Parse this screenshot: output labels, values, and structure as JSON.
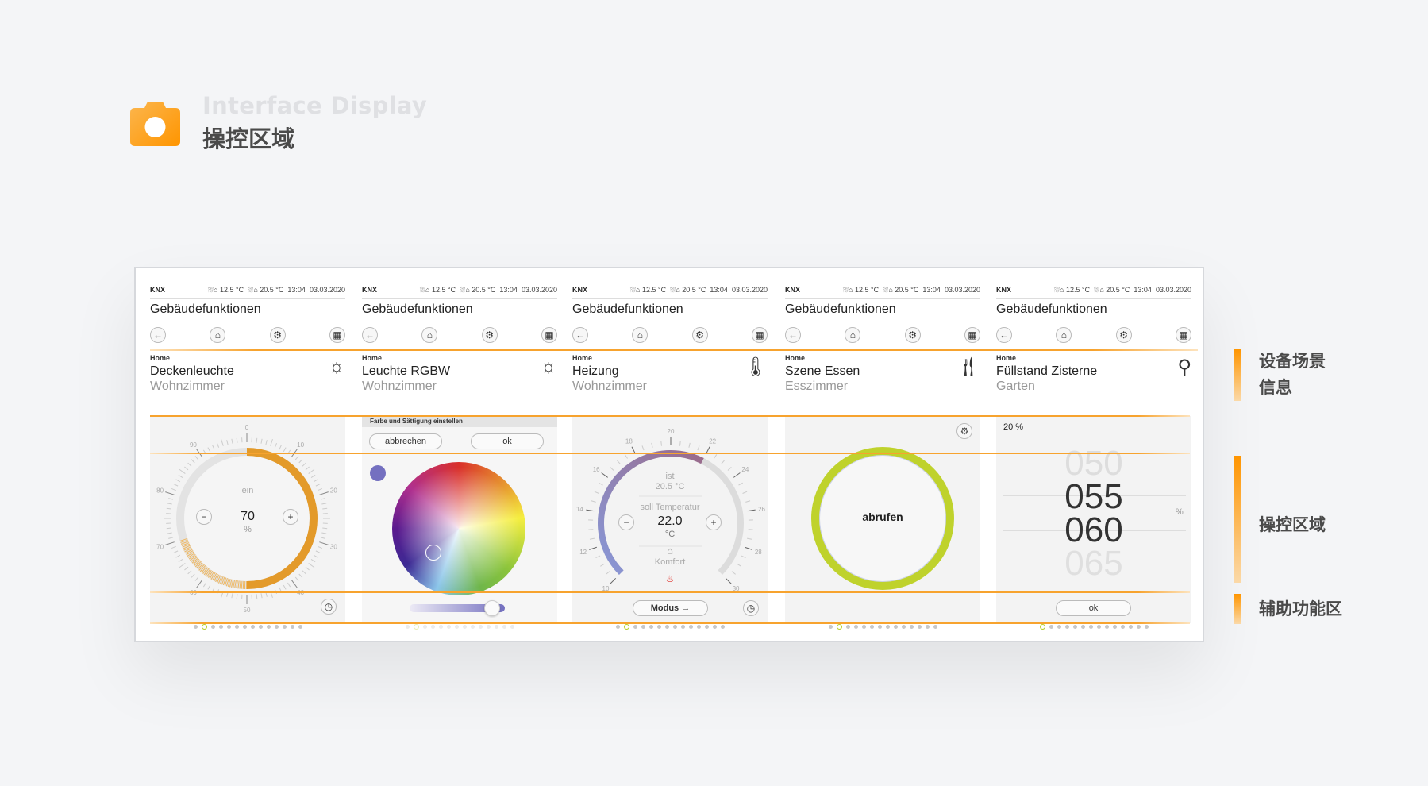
{
  "header": {
    "subtitle_en": "Interface Display",
    "title_cn": "操控区域",
    "logo_icon": "camera-icon"
  },
  "status_bar": {
    "system": "KNX",
    "outdoor_temp": "⛆⌂ 12.5 °C",
    "indoor_temp": "⛆⌂ 20.5 °C",
    "time": "13:04",
    "date": "03.03.2020"
  },
  "app_title": "Gebäudefunktionen",
  "nav_icons": [
    "back-arrow-icon",
    "home-icon",
    "scene-gear-icon",
    "grid-icon"
  ],
  "accent": "#f7a32e",
  "panels": [
    {
      "breadcrumb": "Home",
      "device": "Deckenleuchte",
      "room": "Wohnzimmer",
      "icon": "lightbulb-icon",
      "dimmer": {
        "state": "ein",
        "value": "70",
        "unit": "%",
        "level_percent": 70,
        "tick_labels": [
          "0",
          "10",
          "20",
          "30",
          "40",
          "50",
          "60",
          "70",
          "80",
          "90"
        ]
      }
    },
    {
      "breadcrumb": "Home",
      "device": "Leuchte RGBW",
      "room": "Wohnzimmer",
      "icon": "lightbulb-icon",
      "color_picker": {
        "header": "Farbe und Sättigung einstellen",
        "cancel": "abbrechen",
        "ok": "ok",
        "selected_color": "#7470c0",
        "brightness_percent": 85
      }
    },
    {
      "breadcrumb": "Home",
      "device": "Heizung",
      "room": "Wohnzimmer",
      "icon": "thermometer-icon",
      "thermostat": {
        "actual_label": "ist",
        "actual_value": "20.5 °C",
        "setpoint_label": "soll Temperatur",
        "setpoint_value": "22.0",
        "unit": "°C",
        "mode": "Komfort",
        "mode_button": "Modus",
        "min": 10,
        "max": 30,
        "setpoint": 22,
        "tick_labels": [
          "10",
          "12",
          "14",
          "16",
          "18",
          "20",
          "22",
          "24",
          "26",
          "28",
          "30"
        ]
      }
    },
    {
      "breadcrumb": "Home",
      "device": "Szene Essen",
      "room": "Esszimmer",
      "icon": "cutlery-icon",
      "scene": {
        "button": "abrufen",
        "ring_color": "#bfd22c"
      }
    },
    {
      "breadcrumb": "Home",
      "device": "Füllstand Zisterne",
      "room": "Garten",
      "icon": "faucet-icon",
      "level": {
        "current": "20 %",
        "roller": [
          "050",
          "055",
          "060",
          "065"
        ],
        "unit": "%",
        "ok": "ok"
      }
    }
  ],
  "legend": [
    {
      "label": "设备场景\n信息"
    },
    {
      "label": "操控区域"
    },
    {
      "label": "辅助功能区"
    }
  ]
}
